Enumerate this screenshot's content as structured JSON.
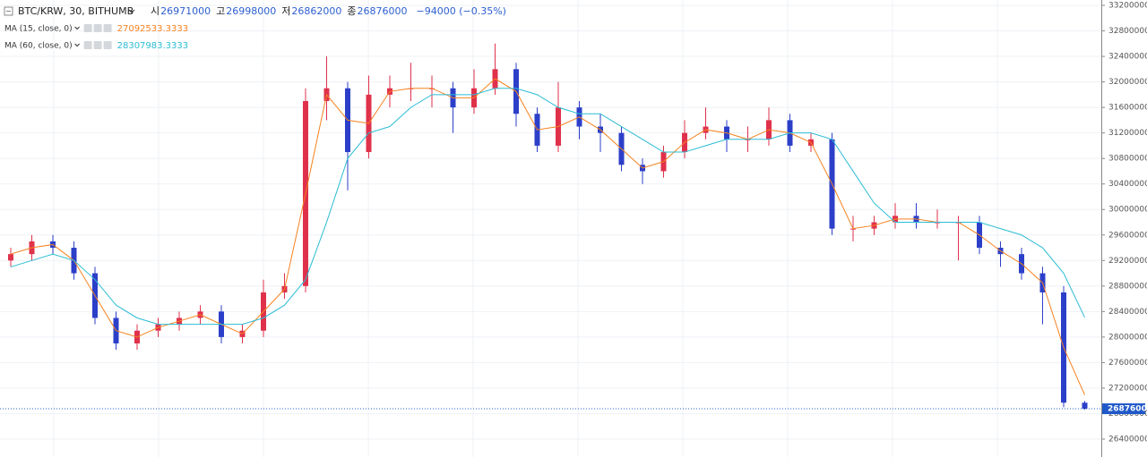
{
  "chart_data": {
    "type": "candlestick",
    "title": "BTC/KRW, 30, BITHUMB",
    "ohlc_labels": [
      "시",
      "고",
      "저",
      "종"
    ],
    "change_label": "−94000 (−0.35%)",
    "up_color": "#e0314b",
    "down_color": "#2c3fc9",
    "grid": true,
    "ylim": [
      26200000,
      33300000
    ],
    "yticks": [
      33200000,
      32800000,
      32400000,
      32000000,
      31600000,
      31200000,
      30800000,
      30400000,
      30000000,
      29600000,
      29200000,
      28800000,
      28400000,
      28000000,
      27600000,
      27200000,
      26800000,
      26400000
    ],
    "open": [
      29200000,
      29300000,
      29500000,
      29400000,
      29000000,
      28300000,
      27900000,
      28100000,
      28200000,
      28300000,
      28400000,
      28000000,
      28100000,
      28700000,
      28800000,
      31700000,
      31900000,
      30900000,
      31800000,
      31900000,
      31900000,
      31900000,
      31600000,
      31900000,
      32200000,
      31500000,
      31000000,
      31600000,
      31300000,
      31200000,
      30700000,
      30600000,
      30900000,
      31200000,
      31300000,
      31100000,
      31100000,
      31400000,
      31000000,
      31100000,
      29700000,
      29700000,
      29800000,
      29900000,
      29800000,
      29800000,
      29800000,
      29400000,
      29300000,
      29000000,
      28700000,
      26971000
    ],
    "high": [
      29400000,
      29600000,
      29600000,
      29500000,
      29100000,
      28400000,
      28200000,
      28300000,
      28400000,
      28500000,
      28500000,
      28200000,
      28900000,
      29000000,
      31900000,
      32400000,
      32000000,
      32100000,
      32100000,
      32300000,
      32100000,
      32000000,
      32200000,
      32600000,
      32300000,
      31600000,
      32000000,
      31700000,
      31500000,
      31300000,
      30800000,
      31000000,
      31400000,
      31600000,
      31400000,
      31300000,
      31600000,
      31500000,
      31200000,
      31200000,
      29900000,
      29900000,
      30100000,
      30100000,
      30000000,
      29900000,
      29900000,
      29500000,
      29400000,
      29100000,
      28800000,
      26998000
    ],
    "low": [
      29100000,
      29200000,
      29300000,
      28900000,
      28200000,
      27800000,
      27800000,
      28000000,
      28100000,
      28200000,
      27900000,
      27900000,
      28000000,
      28600000,
      28700000,
      31400000,
      30300000,
      30800000,
      31600000,
      31700000,
      31600000,
      31200000,
      31500000,
      31800000,
      31300000,
      30900000,
      30900000,
      31100000,
      30900000,
      30600000,
      30400000,
      30500000,
      30800000,
      31100000,
      30900000,
      30900000,
      31000000,
      30900000,
      30900000,
      29600000,
      29500000,
      29600000,
      29700000,
      29700000,
      29700000,
      29200000,
      29300000,
      29100000,
      28900000,
      28200000,
      26900000,
      26862000
    ],
    "close": [
      29300000,
      29500000,
      29400000,
      29000000,
      28300000,
      27900000,
      28100000,
      28200000,
      28300000,
      28400000,
      28000000,
      28100000,
      28700000,
      28800000,
      31700000,
      31900000,
      30900000,
      31800000,
      31900000,
      31900000,
      31900000,
      31600000,
      31900000,
      32200000,
      31500000,
      31000000,
      31600000,
      31300000,
      31200000,
      30700000,
      30600000,
      30900000,
      31200000,
      31300000,
      31100000,
      31100000,
      31400000,
      31000000,
      31100000,
      29700000,
      29700000,
      29800000,
      29900000,
      29800000,
      29800000,
      29800000,
      29400000,
      29300000,
      29000000,
      28700000,
      26971000,
      26876000
    ],
    "series": [
      {
        "name": "MA (15, close, 0)",
        "color": "#f5821f",
        "values": [
          29300000,
          29400000,
          29450000,
          29200000,
          28650000,
          28100000,
          28000000,
          28150000,
          28250000,
          28350000,
          28200000,
          28050000,
          28400000,
          28750000,
          30250000,
          31800000,
          31400000,
          31350000,
          31850000,
          31900000,
          31900000,
          31750000,
          31750000,
          32050000,
          31850000,
          31250000,
          31300000,
          31450000,
          31250000,
          30950000,
          30650000,
          30750000,
          31050000,
          31250000,
          31200000,
          31100000,
          31250000,
          31200000,
          31050000,
          30400000,
          29700000,
          29750000,
          29850000,
          29850000,
          29800000,
          29800000,
          29600000,
          29350000,
          29150000,
          28850000,
          27835500,
          27092533.3333
        ]
      },
      {
        "name": "MA (60, close, 0)",
        "color": "#2bbcd4",
        "values": [
          29100000,
          29200000,
          29300000,
          29200000,
          28900000,
          28500000,
          28300000,
          28200000,
          28200000,
          28200000,
          28200000,
          28200000,
          28300000,
          28500000,
          28900000,
          29800000,
          30800000,
          31200000,
          31300000,
          31600000,
          31800000,
          31800000,
          31800000,
          31900000,
          31900000,
          31800000,
          31600000,
          31500000,
          31500000,
          31300000,
          31100000,
          30900000,
          30900000,
          31000000,
          31100000,
          31100000,
          31100000,
          31200000,
          31200000,
          31100000,
          30600000,
          30100000,
          29800000,
          29800000,
          29800000,
          29800000,
          29800000,
          29700000,
          29600000,
          29400000,
          29000000,
          28307983.3333
        ]
      }
    ]
  }
}
